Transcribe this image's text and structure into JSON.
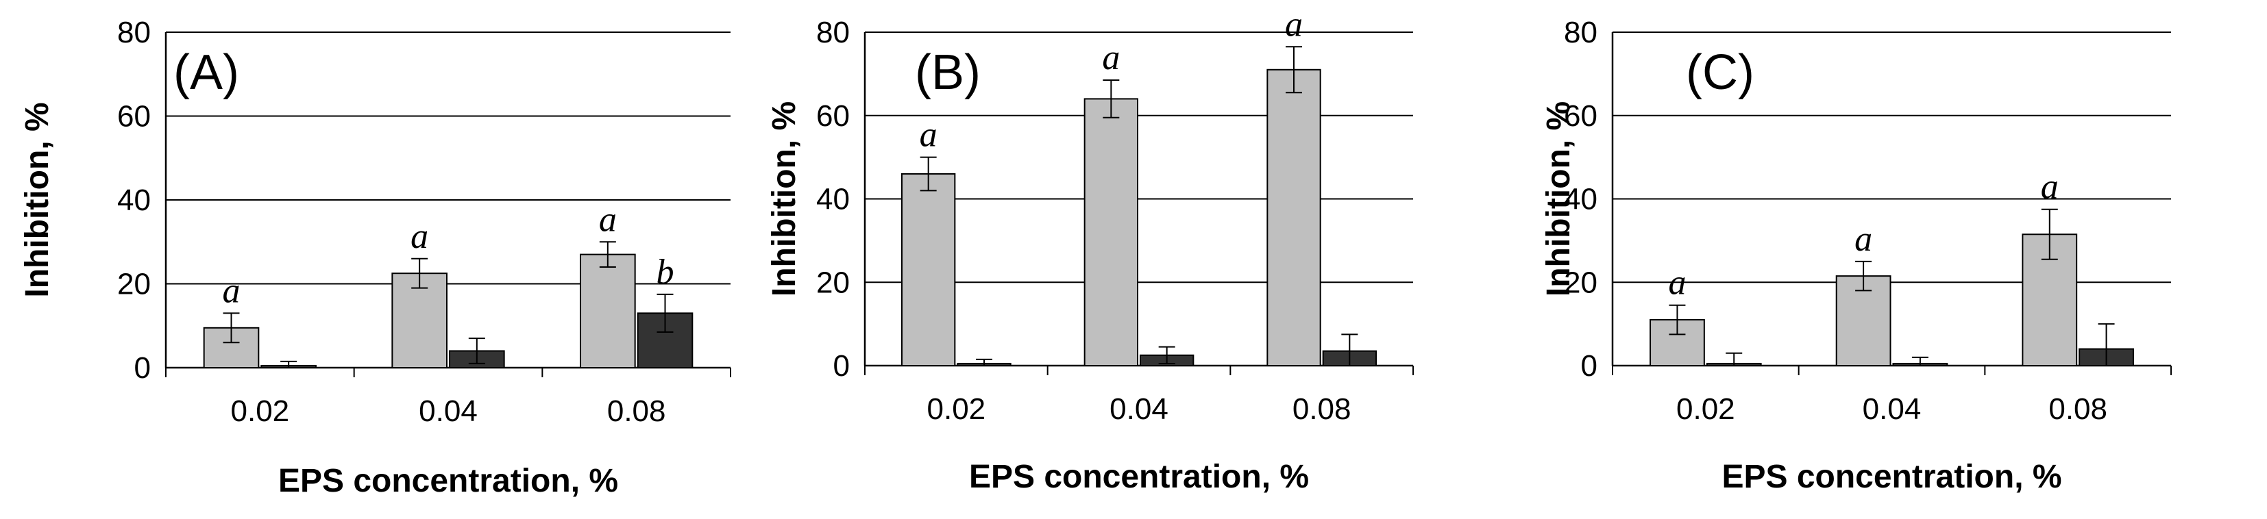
{
  "chart_data": [
    {
      "type": "bar",
      "panel_label": "(A)",
      "categories": [
        "0.02",
        "0.04",
        "0.08"
      ],
      "series": [
        {
          "name": "light",
          "color": "#bfbfbf",
          "values": [
            9.5,
            22.5,
            27
          ],
          "errors": [
            3.5,
            3.5,
            3
          ],
          "labels": [
            "a",
            "a",
            "a"
          ]
        },
        {
          "name": "dark",
          "color": "#333333",
          "values": [
            0.5,
            4,
            13
          ],
          "errors": [
            1,
            3,
            4.5
          ],
          "labels": [
            "",
            "",
            "b"
          ]
        }
      ],
      "xlabel": "EPS concentration, %",
      "ylabel": "Inhibition, %",
      "ylim": [
        0,
        80
      ],
      "yticks": [
        "0",
        "20",
        "40",
        "60",
        "80"
      ],
      "grid": true
    },
    {
      "type": "bar",
      "panel_label": "(B)",
      "categories": [
        "0.02",
        "0.04",
        "0.08"
      ],
      "series": [
        {
          "name": "light",
          "color": "#bfbfbf",
          "values": [
            46,
            64,
            71
          ],
          "errors": [
            4,
            4.5,
            5.5
          ],
          "labels": [
            "a",
            "a",
            "a"
          ]
        },
        {
          "name": "dark",
          "color": "#333333",
          "values": [
            0.5,
            2.5,
            3.5
          ],
          "errors": [
            1,
            2,
            4
          ],
          "labels": [
            "",
            "",
            ""
          ]
        }
      ],
      "xlabel": "EPS concentration, %",
      "ylabel": "Inhibition, %",
      "ylim": [
        0,
        80
      ],
      "yticks": [
        "0",
        "20",
        "40",
        "60",
        "80"
      ],
      "grid": true
    },
    {
      "type": "bar",
      "panel_label": "(C)",
      "categories": [
        "0.02",
        "0.04",
        "0.08"
      ],
      "series": [
        {
          "name": "light",
          "color": "#bfbfbf",
          "values": [
            11,
            21.5,
            31.5
          ],
          "errors": [
            3.5,
            3.5,
            6
          ],
          "labels": [
            "a",
            "a",
            "a"
          ]
        },
        {
          "name": "dark",
          "color": "#333333",
          "values": [
            0.5,
            0.5,
            4
          ],
          "errors": [
            2.5,
            1.5,
            6
          ],
          "labels": [
            "",
            "",
            ""
          ]
        }
      ],
      "xlabel": "EPS concentration, %",
      "ylabel": "Inhibition, %",
      "ylim": [
        0,
        80
      ],
      "yticks": [
        "0",
        "20",
        "40",
        "60",
        "80"
      ],
      "grid": true
    }
  ]
}
